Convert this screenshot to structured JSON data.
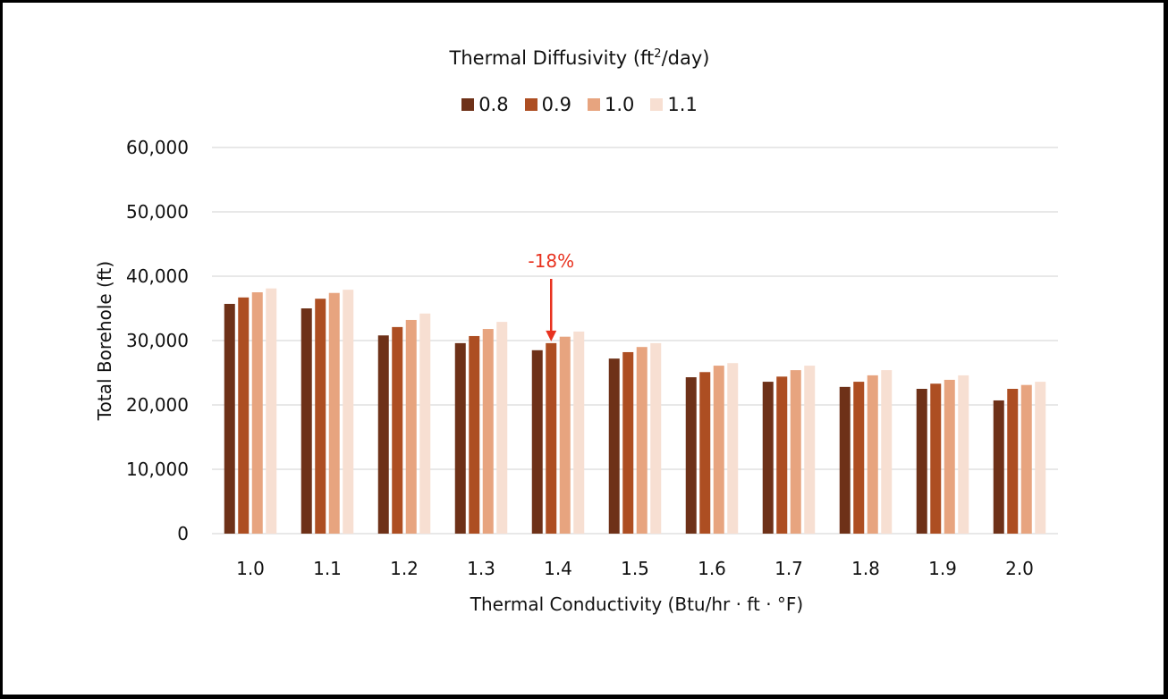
{
  "chart_data": {
    "type": "bar",
    "title": "Thermal Diffusivity (ft²/day)",
    "title_main": "Thermal Diffusivity (ft",
    "title_sup": "2",
    "title_end": "/day)",
    "xlabel": "Thermal Conductivity (Btu/hr · ft · °F)",
    "ylabel": "Total Borehole (ft)",
    "ylim": [
      0,
      60000
    ],
    "yticks": [
      0,
      10000,
      20000,
      30000,
      40000,
      50000,
      60000
    ],
    "ytick_labels": [
      "0",
      "10,000",
      "20,000",
      "30,000",
      "40,000",
      "50,000",
      "60,000"
    ],
    "grid": true,
    "legend_position": "top-center",
    "categories": [
      "1.0",
      "1.1",
      "1.2",
      "1.3",
      "1.4",
      "1.5",
      "1.6",
      "1.7",
      "1.8",
      "1.9",
      "2.0"
    ],
    "series": [
      {
        "name": "0.8",
        "color": "#6e3118",
        "values": [
          35700,
          35000,
          30800,
          29600,
          28500,
          27200,
          24300,
          23600,
          22800,
          22500,
          20700
        ]
      },
      {
        "name": "0.9",
        "color": "#ad4e22",
        "values": [
          36700,
          36500,
          32100,
          30700,
          29600,
          28200,
          25100,
          24400,
          23600,
          23300,
          22500
        ]
      },
      {
        "name": "1.0",
        "color": "#e7a47f",
        "values": [
          37500,
          37400,
          33200,
          31800,
          30600,
          29000,
          26100,
          25400,
          24600,
          23900,
          23100
        ]
      },
      {
        "name": "1.1",
        "color": "#f7dfd2",
        "values": [
          38100,
          37900,
          34200,
          32900,
          31400,
          29600,
          26500,
          26100,
          25400,
          24600,
          23600
        ]
      }
    ],
    "annotations": [
      {
        "text": "-18%",
        "category": "1.4",
        "series": "0.9",
        "color": "#e8321f",
        "type": "arrow-down"
      }
    ]
  }
}
